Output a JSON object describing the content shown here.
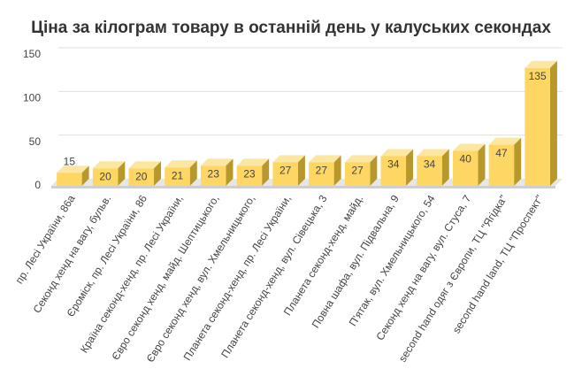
{
  "chart_data": {
    "type": "bar3d",
    "title": "Ціна за кілограм товару в останній день у калуських секондах",
    "categories": [
      "пр. Лесі України, 86а",
      "Секонд хенд на вагу, бульв.",
      "Єроміск, пр. Лесі України, 86",
      "Країна секонд-хенд, пр. Лесі України,",
      "Євро секонд хенд, майд. Шептицького,",
      "Євро секонд хенд, вул. Хмельницького,",
      "Планета секонд-хенд, пр. Лесі України,",
      "Планета секонд-хенд, вул. Сівецька, 3",
      "Планета секонд-хенд, майд.",
      "Повна шафа, вул. Підвальна, 9",
      "П'ятак, вул. Хмельницького, 54",
      "Секонд хенд на вагу, вул. Стуса, 7",
      "second hand одяг з Європи, ТЦ \"Ягідка\"",
      "second hand land, ТЦ \"Проспект\""
    ],
    "values": [
      15,
      20,
      20,
      21,
      23,
      23,
      27,
      27,
      27,
      34,
      34,
      40,
      47,
      135
    ],
    "color": "#fdd663",
    "ylim": [
      0,
      150
    ],
    "yticks": [
      0,
      50,
      100,
      150
    ],
    "grid": true
  }
}
